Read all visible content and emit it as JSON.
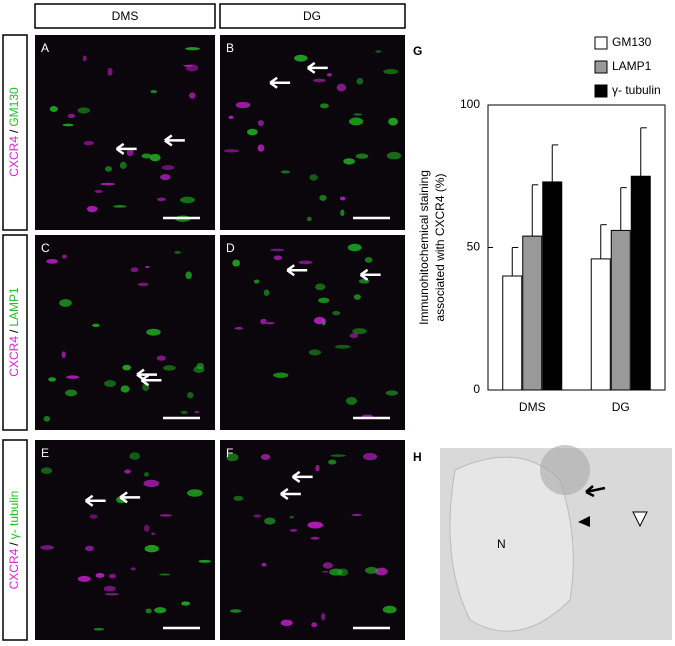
{
  "columns": [
    "DMS",
    "DG"
  ],
  "rows": [
    {
      "marker": "CXCR4",
      "sep": "/",
      "stain": "GM130"
    },
    {
      "marker": "CXCR4",
      "sep": "/",
      "stain": "LAMP1"
    },
    {
      "marker": "CXCR4",
      "sep": "/",
      "stain": "γ- tubulin"
    }
  ],
  "panels": [
    "A",
    "B",
    "C",
    "D",
    "E",
    "F"
  ],
  "em_panel": {
    "label": "H",
    "nucleus": "N"
  },
  "chart_data": {
    "type": "bar",
    "panel_label": "G",
    "y_label": [
      "Immunohitochemical staining",
      "associated with CXCR4 (%)"
    ],
    "categories": [
      "DMS",
      "DG"
    ],
    "series": [
      {
        "name": "GM130",
        "color": "#ffffff",
        "values": [
          40,
          46
        ],
        "errors": [
          10,
          12
        ]
      },
      {
        "name": "LAMP1",
        "color": "#999999",
        "values": [
          54,
          56
        ],
        "errors": [
          18,
          15
        ]
      },
      {
        "name": "γ- tubulin",
        "color": "#000000",
        "values": [
          73,
          75
        ],
        "errors": [
          13,
          17
        ]
      }
    ],
    "ylim": [
      0,
      100
    ],
    "yticks": [
      0,
      50,
      100
    ],
    "legend": "top-right"
  }
}
